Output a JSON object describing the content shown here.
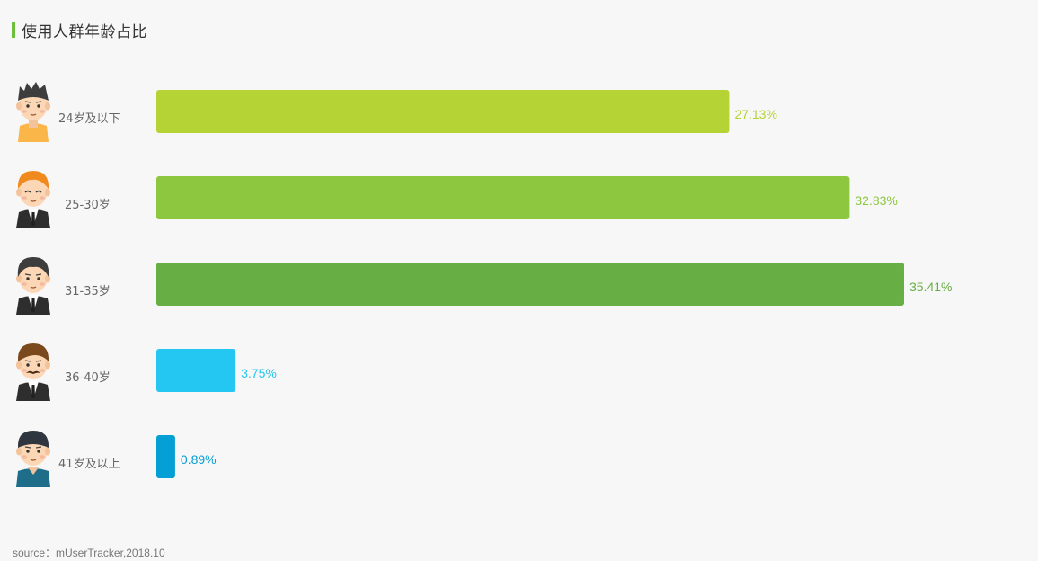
{
  "header": {
    "title": "使用人群年龄占比",
    "accent_color": "#6bbf3a"
  },
  "source": "source：mUserTracker,2018.10",
  "chart_data": {
    "type": "bar",
    "orientation": "horizontal",
    "title": "使用人群年龄占比",
    "xlabel": "",
    "ylabel": "",
    "xlim": [
      0,
      35.41
    ],
    "grid": false,
    "categories": [
      "24岁及以下",
      "25-30岁",
      "31-35岁",
      "36-40岁",
      "41岁及以上"
    ],
    "values": [
      27.13,
      32.83,
      35.41,
      3.75,
      0.89
    ],
    "value_labels": [
      "27.13%",
      "32.83%",
      "35.41%",
      "3.75%",
      "0.89%"
    ],
    "colors": [
      "#b5d334",
      "#8dc63f",
      "#67ae44",
      "#23c7f1",
      "#039fd5"
    ],
    "icons": [
      "boy-avatar-icon",
      "young-man-suit-avatar-icon",
      "man-suit-avatar-icon",
      "mustache-man-avatar-icon",
      "older-man-avatar-icon"
    ]
  }
}
